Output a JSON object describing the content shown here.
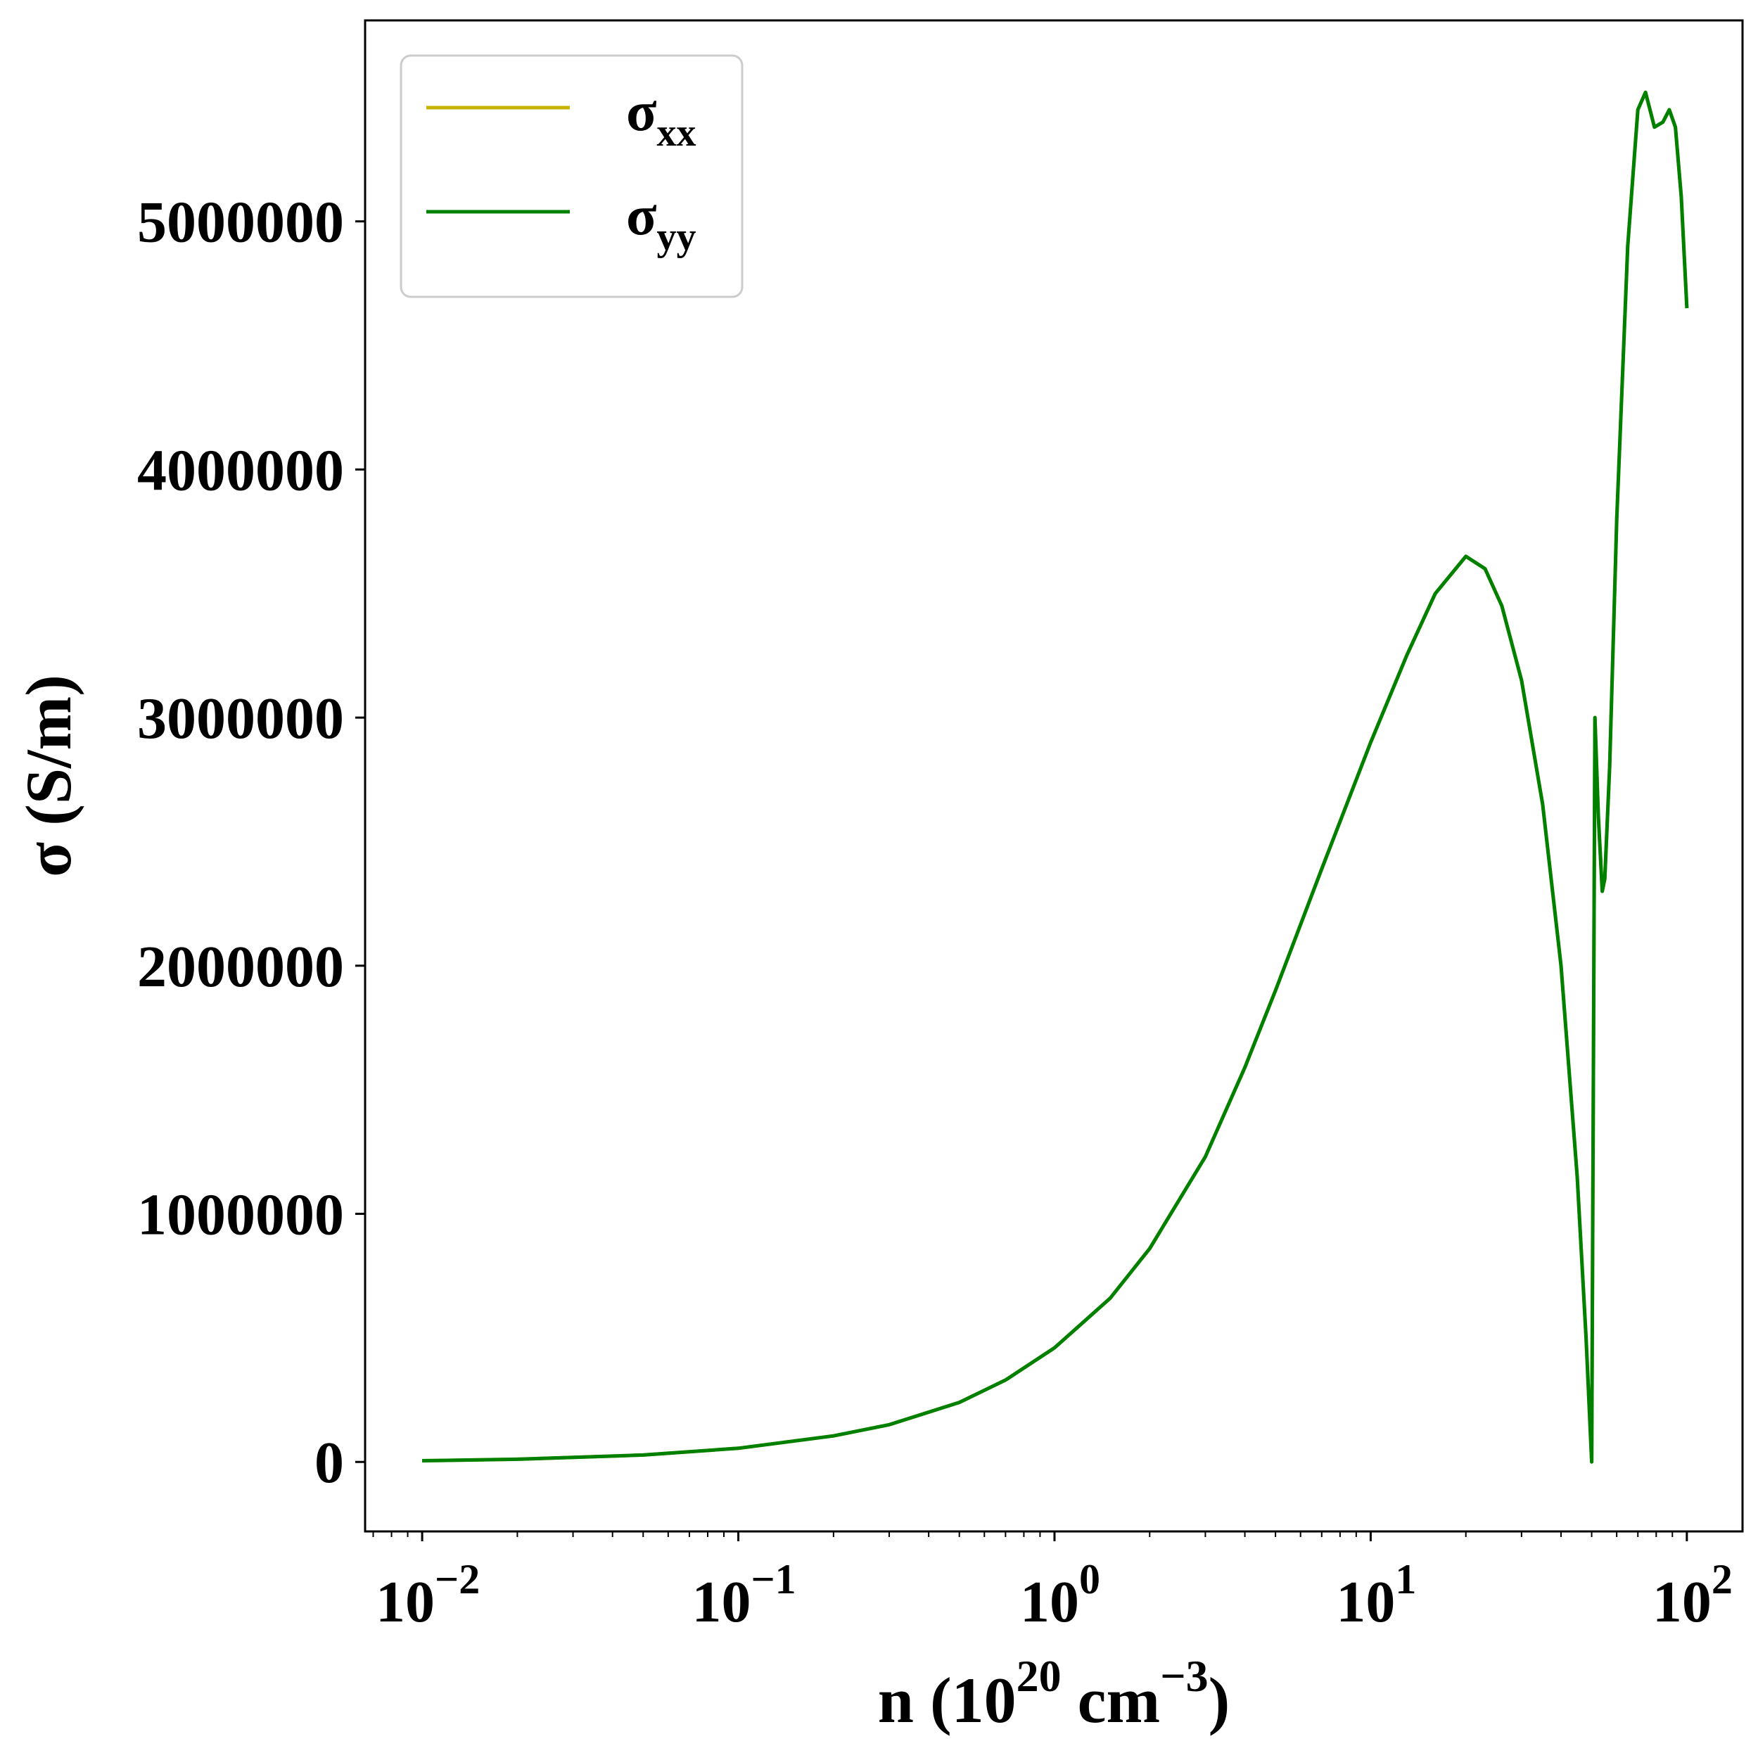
{
  "chart_data": {
    "type": "line",
    "title": "",
    "xlabel": {
      "main": "n (10",
      "sup1": "20",
      "mid": " cm",
      "sup2": "−3",
      "end": ")"
    },
    "ylabel": "σ (S/m)",
    "x_scale": "log",
    "xlim": [
      0.0066,
      150
    ],
    "ylim": [
      -280000,
      5810000
    ],
    "x_ticks": [
      {
        "value": 0.01,
        "base": "10",
        "exp": "−2"
      },
      {
        "value": 0.1,
        "base": "10",
        "exp": "−1"
      },
      {
        "value": 1,
        "base": "10",
        "exp": "0"
      },
      {
        "value": 10,
        "base": "10",
        "exp": "1"
      },
      {
        "value": 100,
        "base": "10",
        "exp": "2"
      }
    ],
    "y_ticks": [
      {
        "value": 0,
        "label": "0"
      },
      {
        "value": 1000000,
        "label": "1000000"
      },
      {
        "value": 2000000,
        "label": "2000000"
      },
      {
        "value": 3000000,
        "label": "3000000"
      },
      {
        "value": 4000000,
        "label": "4000000"
      },
      {
        "value": 5000000,
        "label": "5000000"
      }
    ],
    "grid": false,
    "legend_position": "top-left",
    "series": [
      {
        "name": "σ",
        "sub": "xx",
        "color": "#c8b400",
        "x": [
          0.01,
          0.02,
          0.05,
          0.1,
          0.2,
          0.3,
          0.5,
          0.7,
          1.0,
          1.5,
          2.0,
          3.0,
          4.0,
          5.0,
          7.0,
          10,
          13,
          16,
          20,
          23,
          26,
          30,
          35,
          40,
          45,
          48,
          50,
          50.6,
          51.2,
          52.5,
          54,
          55,
          57,
          60,
          65,
          70,
          74,
          79,
          84,
          88,
          92,
          96,
          100
        ],
        "y": [
          5000,
          11000,
          28000,
          55000,
          105000,
          150000,
          240000,
          330000,
          460000,
          660000,
          860000,
          1230000,
          1590000,
          1900000,
          2390000,
          2900000,
          3250000,
          3500000,
          3650000,
          3600000,
          3450000,
          3150000,
          2650000,
          2000000,
          1150000,
          500000,
          0,
          1500000,
          3000000,
          2600000,
          2300000,
          2350000,
          2800000,
          3800000,
          4900000,
          5450000,
          5520000,
          5380000,
          5400000,
          5450000,
          5380000,
          5100000,
          4650000
        ]
      },
      {
        "name": "σ",
        "sub": "yy",
        "color": "#008000",
        "x": [
          0.01,
          0.02,
          0.05,
          0.1,
          0.2,
          0.3,
          0.5,
          0.7,
          1.0,
          1.5,
          2.0,
          3.0,
          4.0,
          5.0,
          7.0,
          10,
          13,
          16,
          20,
          23,
          26,
          30,
          35,
          40,
          45,
          48,
          50,
          50.6,
          51.2,
          52.5,
          54,
          55,
          57,
          60,
          65,
          70,
          74,
          79,
          84,
          88,
          92,
          96,
          100
        ],
        "y": [
          5000,
          11000,
          28000,
          55000,
          105000,
          150000,
          240000,
          330000,
          460000,
          660000,
          860000,
          1230000,
          1590000,
          1900000,
          2390000,
          2900000,
          3250000,
          3500000,
          3650000,
          3600000,
          3450000,
          3150000,
          2650000,
          2000000,
          1150000,
          500000,
          0,
          1500000,
          3000000,
          2600000,
          2300000,
          2350000,
          2800000,
          3800000,
          4900000,
          5450000,
          5520000,
          5380000,
          5400000,
          5450000,
          5380000,
          5100000,
          4650000
        ]
      }
    ]
  }
}
